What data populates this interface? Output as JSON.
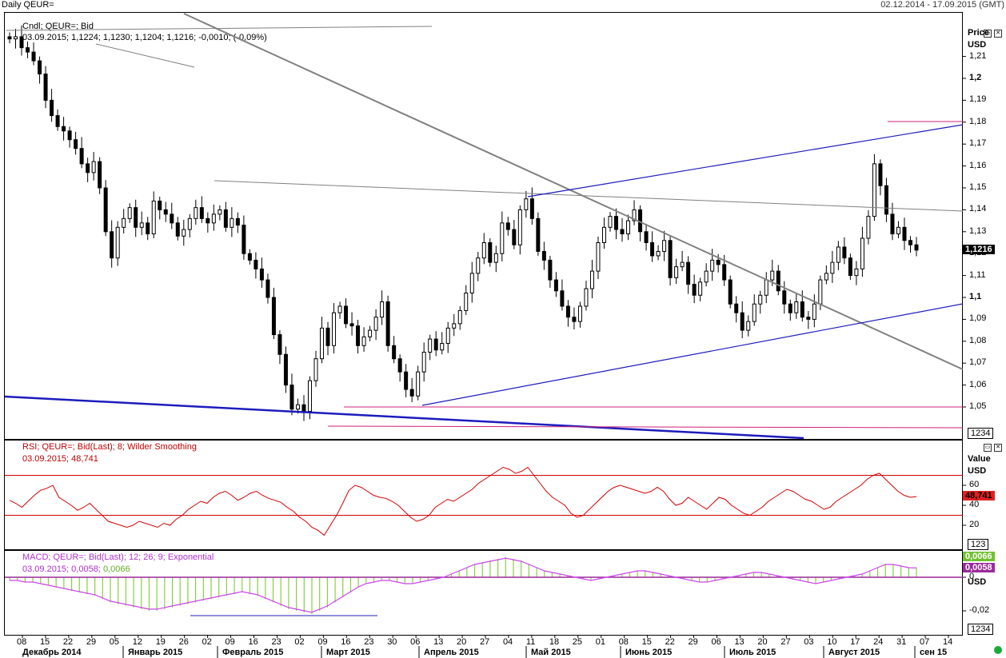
{
  "header": {
    "title": "Daily QEUR=",
    "range": "02.12.2014 - 17.09.2015 (GMT)"
  },
  "price_panel": {
    "legend_line1": "Cndl; QEUR=; Bid",
    "legend_line2": "03.09.2015; 1,1224; 1,1230; 1,1204; 1,1216; -0,0010; (-0,09%)",
    "axis_title": "Price",
    "axis_unit": "USD",
    "last_badge": "1,1216",
    "scale_badge": "1234"
  },
  "rsi_panel": {
    "legend_line1": "RSI; QEUR=; Bid(Last);  8; Wilder Smoothing",
    "legend_line2": "03.09.2015; 48,741",
    "axis_title": "Value",
    "axis_unit": "USD",
    "last_badge": "48,741",
    "scale_badge": "123"
  },
  "macd_panel": {
    "legend_line1": "MACD; QEUR=; Bid(Last);  12; 26; 9; Exponential",
    "legend_line2_a": "03.09.2015; 0,0058; ",
    "legend_line2_b": "0,0066",
    "axis_unit": "USD",
    "badge_signal": "0,0066",
    "badge_macd": "0,0058",
    "scale_badge": "1234"
  },
  "colors": {
    "candle": "#000000",
    "gray_trend": "#808080",
    "blue_trend": "#1c1cbc",
    "magenta_level": "#d0207a",
    "rsi_line": "#d00000",
    "macd_hist": "#88d040",
    "macd_hist_neg": "#cc44ee",
    "macd_zero": "#9a2a9a",
    "badge_red": "#e02020",
    "badge_green": "#70c030",
    "badge_purple": "#9a2a9a"
  },
  "chart_data": [
    {
      "type": "candlestick",
      "title": "Daily QEUR=",
      "ylabel": "Price USD",
      "ylim": [
        1.04,
        1.22
      ],
      "y_ticks": [
        "1,21",
        "1,2",
        "1,19",
        "1,18",
        "1,17",
        "1,16",
        "1,15",
        "1,14",
        "1,13",
        "1,12",
        "1,11",
        "1,1",
        "1,09",
        "1,08",
        "1,07",
        "1,06",
        "1,05"
      ],
      "last_value": 1.1216,
      "close_series": [
        1.218,
        1.219,
        1.214,
        1.212,
        1.208,
        1.202,
        1.19,
        1.183,
        1.178,
        1.176,
        1.172,
        1.168,
        1.161,
        1.157,
        1.162,
        1.15,
        1.13,
        1.118,
        1.132,
        1.136,
        1.141,
        1.132,
        1.134,
        1.129,
        1.144,
        1.14,
        1.138,
        1.134,
        1.128,
        1.131,
        1.136,
        1.141,
        1.136,
        1.134,
        1.138,
        1.14,
        1.132,
        1.136,
        1.133,
        1.12,
        1.117,
        1.113,
        1.108,
        1.1,
        1.083,
        1.074,
        1.06,
        1.049,
        1.051,
        1.048,
        1.062,
        1.072,
        1.086,
        1.078,
        1.093,
        1.096,
        1.088,
        1.087,
        1.078,
        1.082,
        1.085,
        1.091,
        1.098,
        1.078,
        1.072,
        1.066,
        1.058,
        1.055,
        1.066,
        1.075,
        1.081,
        1.076,
        1.079,
        1.086,
        1.088,
        1.094,
        1.102,
        1.111,
        1.118,
        1.125,
        1.116,
        1.12,
        1.134,
        1.131,
        1.124,
        1.14,
        1.145,
        1.136,
        1.121,
        1.117,
        1.108,
        1.103,
        1.096,
        1.091,
        1.089,
        1.096,
        1.104,
        1.112,
        1.125,
        1.132,
        1.137,
        1.131,
        1.129,
        1.135,
        1.14,
        1.13,
        1.125,
        1.119,
        1.121,
        1.126,
        1.109,
        1.114,
        1.116,
        1.106,
        1.101,
        1.107,
        1.112,
        1.117,
        1.115,
        1.108,
        1.097,
        1.093,
        1.085,
        1.089,
        1.097,
        1.101,
        1.108,
        1.112,
        1.103,
        1.097,
        1.093,
        1.098,
        1.091,
        1.09,
        1.097,
        1.108,
        1.111,
        1.116,
        1.123,
        1.118,
        1.11,
        1.113,
        1.127,
        1.137,
        1.161,
        1.151,
        1.138,
        1.129,
        1.132,
        1.126,
        1.124,
        1.1216
      ]
    },
    {
      "type": "line",
      "title": "RSI; QEUR=; Bid(Last); 8; Wilder Smoothing",
      "ylabel": "Value USD",
      "y_ticks": [
        "60",
        "40",
        "20"
      ],
      "levels": [
        70,
        30
      ],
      "last_value": 48.741,
      "values": [
        45,
        42,
        38,
        44,
        50,
        55,
        57,
        60,
        48,
        44,
        40,
        35,
        38,
        42,
        36,
        30,
        24,
        22,
        20,
        18,
        20,
        24,
        22,
        20,
        18,
        22,
        20,
        26,
        30,
        36,
        40,
        44,
        42,
        48,
        52,
        54,
        50,
        45,
        48,
        52,
        54,
        50,
        47,
        45,
        43,
        38,
        34,
        28,
        24,
        18,
        15,
        10,
        20,
        30,
        42,
        55,
        60,
        58,
        54,
        50,
        48,
        47,
        44,
        40,
        34,
        28,
        24,
        26,
        30,
        38,
        42,
        46,
        44,
        48,
        52,
        56,
        62,
        66,
        70,
        74,
        78,
        76,
        72,
        74,
        78,
        70,
        62,
        54,
        48,
        44,
        40,
        32,
        28,
        30,
        36,
        42,
        48,
        54,
        58,
        60,
        58,
        56,
        54,
        52,
        54,
        58,
        54,
        46,
        40,
        42,
        48,
        44,
        40,
        36,
        42,
        48,
        46,
        40,
        36,
        32,
        30,
        34,
        38,
        44,
        48,
        52,
        56,
        54,
        50,
        46,
        44,
        40,
        36,
        38,
        44,
        48,
        52,
        56,
        60,
        66,
        70,
        72,
        66,
        60,
        54,
        50,
        48,
        48.741
      ]
    },
    {
      "type": "bar",
      "title": "MACD; QEUR=; Bid(Last); 12; 26; 9; Exponential",
      "ylabel": "USD",
      "y_ticks": [
        "0",
        "-0,02"
      ],
      "series": [
        {
          "name": "MACD",
          "last_value": 0.0058
        },
        {
          "name": "Signal",
          "last_value": 0.0066
        }
      ],
      "values": [
        -0.002,
        -0.002,
        -0.003,
        -0.003,
        -0.004,
        -0.005,
        -0.006,
        -0.007,
        -0.008,
        -0.009,
        -0.01,
        -0.011,
        -0.013,
        -0.015,
        -0.016,
        -0.017,
        -0.018,
        -0.019,
        -0.02,
        -0.02,
        -0.019,
        -0.018,
        -0.017,
        -0.016,
        -0.015,
        -0.014,
        -0.013,
        -0.012,
        -0.011,
        -0.01,
        -0.009,
        -0.01,
        -0.011,
        -0.013,
        -0.015,
        -0.017,
        -0.019,
        -0.02,
        -0.021,
        -0.022,
        -0.02,
        -0.018,
        -0.015,
        -0.012,
        -0.009,
        -0.006,
        -0.004,
        -0.003,
        -0.002,
        -0.002,
        -0.003,
        -0.004,
        -0.004,
        -0.003,
        -0.002,
        -0.001,
        0.0,
        0.002,
        0.004,
        0.006,
        0.008,
        0.009,
        0.01,
        0.011,
        0.012,
        0.011,
        0.01,
        0.008,
        0.006,
        0.004,
        0.003,
        0.002,
        0.001,
        0.0,
        -0.001,
        -0.002,
        -0.001,
        0.0,
        0.001,
        0.002,
        0.003,
        0.004,
        0.004,
        0.003,
        0.002,
        0.001,
        0.0,
        -0.001,
        -0.002,
        -0.003,
        -0.003,
        -0.002,
        -0.001,
        0.0,
        0.001,
        0.002,
        0.003,
        0.003,
        0.002,
        0.001,
        0.0,
        -0.001,
        -0.002,
        -0.003,
        -0.004,
        -0.003,
        -0.002,
        -0.001,
        0.0,
        0.001,
        0.002,
        0.004,
        0.006,
        0.008,
        0.008,
        0.007,
        0.006,
        0.0058
      ]
    }
  ],
  "date_axis": {
    "day_ticks": [
      "08",
      "15",
      "22",
      "29",
      "05",
      "12",
      "19",
      "26",
      "02",
      "09",
      "16",
      "23",
      "02",
      "09",
      "16",
      "23",
      "30",
      "06",
      "13",
      "20",
      "27",
      "04",
      "11",
      "18",
      "25",
      "01",
      "08",
      "15",
      "22",
      "29",
      "06",
      "13",
      "20",
      "27",
      "03",
      "10",
      "17",
      "24",
      "31",
      "07",
      "14"
    ],
    "months": [
      "Декабрь 2014",
      "Январь 2015",
      "Февраль 2015",
      "Март 2015",
      "Апрель 2015",
      "Май 2015",
      "Июнь 2015",
      "Июль 2015",
      "Август 2015",
      "сен 15"
    ]
  }
}
